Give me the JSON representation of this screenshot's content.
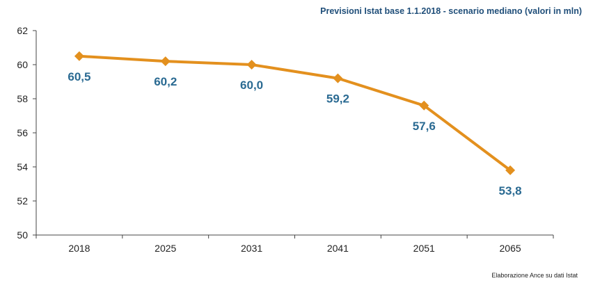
{
  "chart_data": {
    "type": "line",
    "subtitle": "Previsioni Istat base 1.1.2018 - scenario mediano (valori in mln)",
    "source": "Elaborazione Ance su dati Istat",
    "categories": [
      "2018",
      "2025",
      "2031",
      "2041",
      "2051",
      "2065"
    ],
    "series": [
      {
        "values": [
          60.5,
          60.2,
          60.0,
          59.2,
          57.6,
          53.8
        ],
        "labels": [
          "60,5",
          "60,2",
          "60,0",
          "59,2",
          "57,6",
          "53,8"
        ]
      }
    ],
    "yticks": [
      "50",
      "52",
      "54",
      "56",
      "58",
      "60",
      "62"
    ],
    "ylim": [
      50,
      62
    ],
    "grid": false,
    "legend": "none",
    "colors": {
      "line": "#e3901e",
      "label": "#2a6a92",
      "subtitle": "#1f4e79"
    }
  }
}
